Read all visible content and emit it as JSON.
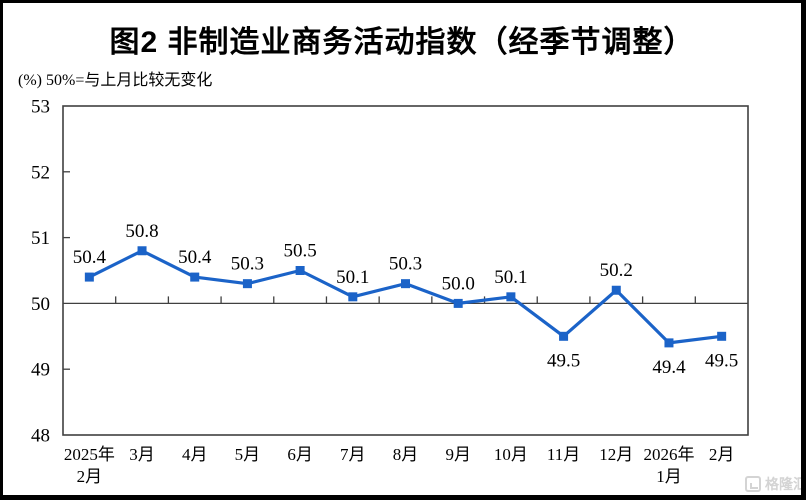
{
  "title": "图2 非制造业商务活动指数（经季节调整）",
  "subtitle": "(%) 50%=与上月比较无变化",
  "watermark": {
    "text": "格隆汇"
  },
  "colors": {
    "line": "#1b63c8",
    "axis": "#404040",
    "text": "#000000",
    "background": "#ffffff",
    "outer_border": "#000000",
    "watermark": "#d4d4d4"
  },
  "chart_data": {
    "type": "line",
    "title": "图2 非制造业商务活动指数（经季节调整）",
    "subtitle": "(%) 50%=与上月比较无变化",
    "categories": [
      "2025年\n2月",
      "3月",
      "4月",
      "5月",
      "6月",
      "7月",
      "8月",
      "9月",
      "10月",
      "11月",
      "12月",
      "2026年\n1月",
      "2月"
    ],
    "values": [
      50.4,
      50.8,
      50.4,
      50.3,
      50.5,
      50.1,
      50.3,
      50.0,
      50.1,
      49.5,
      50.2,
      49.4,
      49.5
    ],
    "point_labels": [
      "50.4",
      "50.8",
      "50.4",
      "50.3",
      "50.5",
      "50.1",
      "50.3",
      "50.0",
      "50.1",
      "49.5",
      "50.2",
      "49.4",
      "49.5"
    ],
    "label_side": [
      "above",
      "above",
      "above",
      "above",
      "above",
      "above",
      "above",
      "above",
      "above",
      "below",
      "above",
      "below",
      "below"
    ],
    "ylabel": "%",
    "xlabel": "",
    "ylim": [
      48,
      53
    ],
    "ytick_step": 1,
    "yticks": [
      48,
      49,
      50,
      51,
      52,
      53
    ],
    "reference_line": 50,
    "grid": false,
    "legend_position": "none",
    "series_color": "#1b63c8",
    "marker": "square"
  }
}
